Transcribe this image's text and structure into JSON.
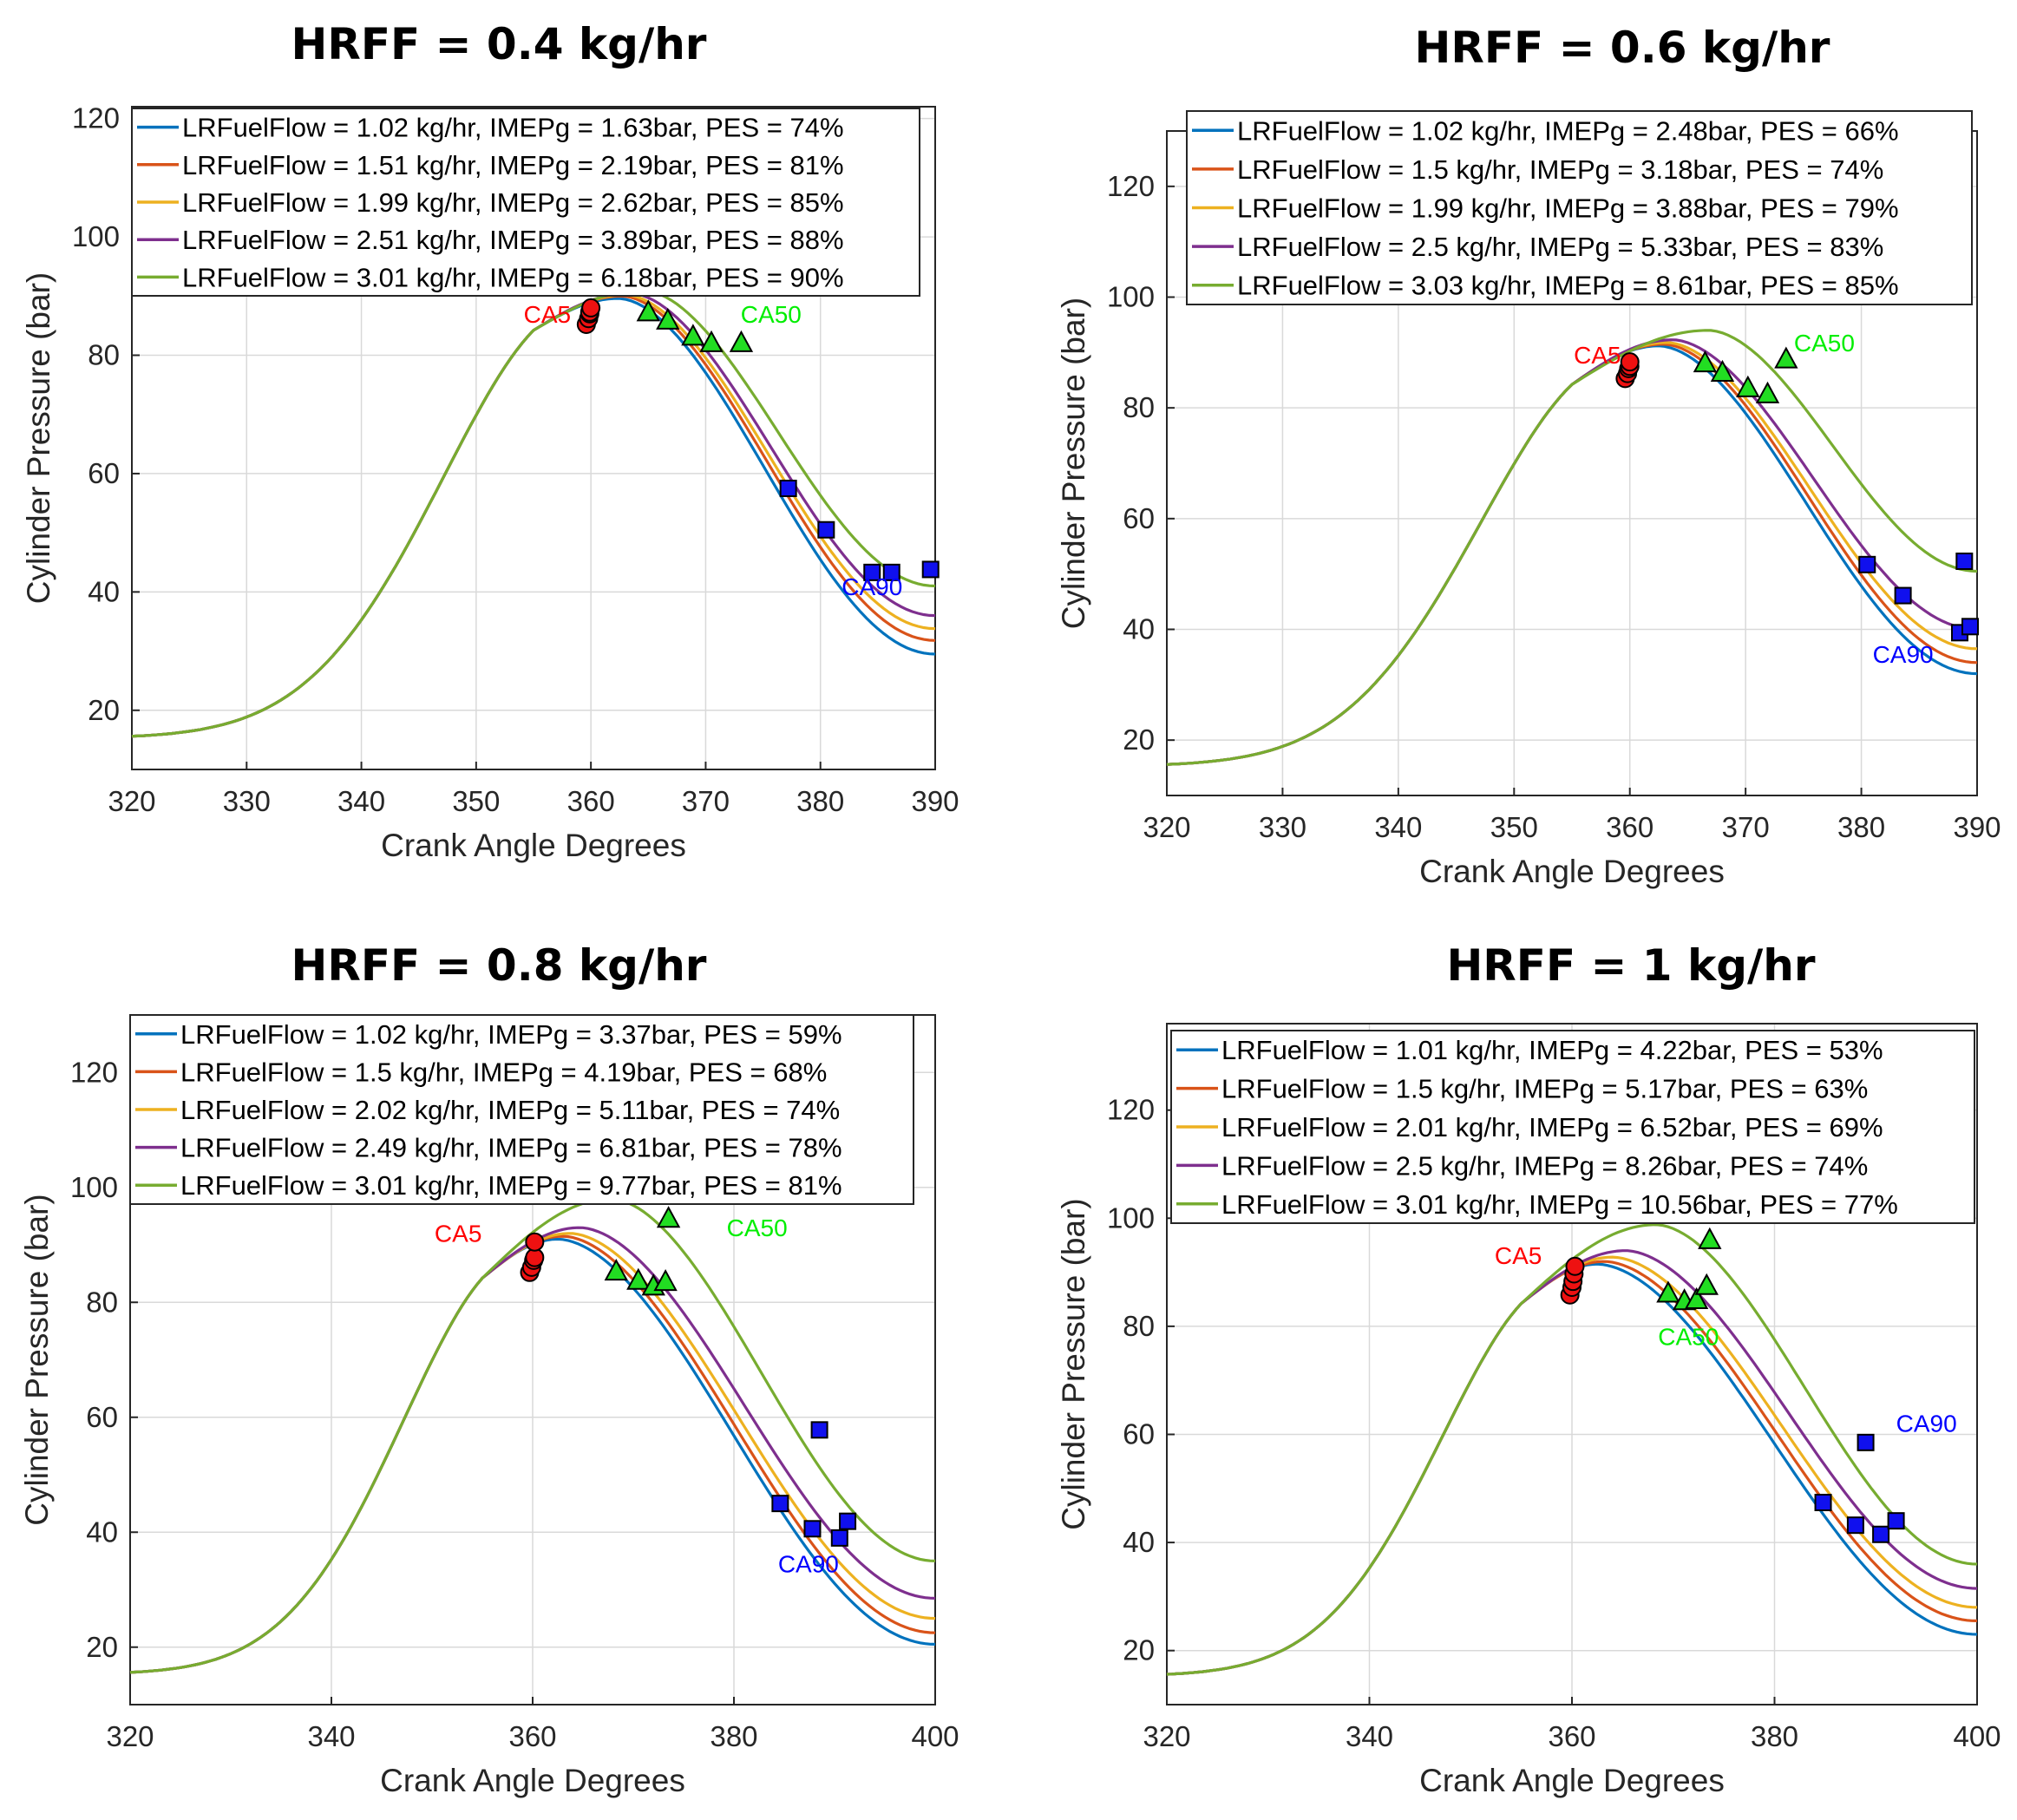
{
  "chart_data": [
    {
      "type": "line",
      "title": "HRFF = 0.4 kg/hr",
      "xlabel": "Crank Angle Degrees",
      "ylabel": "Cylinder Pressure (bar)",
      "xlim": [
        320,
        390
      ],
      "ylim": [
        10,
        122
      ],
      "xticks": [
        320,
        330,
        340,
        350,
        360,
        370,
        380,
        390
      ],
      "yticks": [
        20,
        40,
        60,
        80,
        100,
        120
      ],
      "grid": true,
      "legend_location": "top",
      "series": [
        {
          "name": "LRFuelFlow = 1.02 kg/hr, IMEPg = 1.63bar, PES = 74%",
          "color": "#0072BD",
          "peak_x": 362.4,
          "peak_y": 89.6,
          "end_y": 29.5,
          "ca5": [
            359.6,
            85.2
          ],
          "ca50": [
            365.0,
            87.2
          ],
          "ca90": [
            384.5,
            43.3
          ]
        },
        {
          "name": "LRFuelFlow = 1.51 kg/hr, IMEPg = 2.19bar, PES = 81%",
          "color": "#D95319",
          "peak_x": 362.7,
          "peak_y": 90.0,
          "end_y": 31.8,
          "ca5": [
            359.8,
            86.2
          ],
          "ca50": [
            366.7,
            85.8
          ],
          "ca90": [
            386.2,
            43.3
          ]
        },
        {
          "name": "LRFuelFlow = 1.99 kg/hr, IMEPg = 2.62bar, PES = 85%",
          "color": "#EDB120",
          "peak_x": 363.0,
          "peak_y": 90.2,
          "end_y": 33.8,
          "ca5": [
            359.9,
            87.0
          ],
          "ca50": [
            368.9,
            83.1
          ],
          "ca90": [
            380.5,
            50.5
          ]
        },
        {
          "name": "LRFuelFlow = 2.51 kg/hr, IMEPg = 3.89bar, PES = 88%",
          "color": "#7E2F8E",
          "peak_x": 363.4,
          "peak_y": 90.5,
          "end_y": 36.0,
          "ca5": [
            359.9,
            87.3
          ],
          "ca50": [
            370.5,
            82.0
          ],
          "ca90": [
            377.2,
            57.5
          ]
        },
        {
          "name": "LRFuelFlow = 3.01 kg/hr, IMEPg = 6.18bar, PES = 90%",
          "color": "#77AC30",
          "peak_x": 364.5,
          "peak_y": 91.0,
          "end_y": 41.0,
          "ca5": [
            360.0,
            88.0
          ],
          "ca50": [
            373.1,
            82.0
          ],
          "ca90": [
            389.6,
            43.8
          ]
        }
      ],
      "annotations": [
        {
          "text": "CA5",
          "x": 356.2,
          "y": 85.5,
          "color": "#FF0000"
        },
        {
          "text": "CA50",
          "x": 375.7,
          "y": 85.5,
          "color": "#00EE00"
        },
        {
          "text": "CA90",
          "x": 384.5,
          "y": 39.5,
          "color": "#0000FF"
        }
      ]
    },
    {
      "type": "line",
      "title": "HRFF = 0.6 kg/hr",
      "xlabel": "Crank Angle Degrees",
      "ylabel": "Cylinder Pressure (bar)",
      "xlim": [
        320,
        390
      ],
      "ylim": [
        10,
        130
      ],
      "xticks": [
        320,
        330,
        340,
        350,
        360,
        370,
        380,
        390
      ],
      "yticks": [
        20,
        40,
        60,
        80,
        100,
        120
      ],
      "grid": true,
      "legend_location": "top",
      "series": [
        {
          "name": "LRFuelFlow = 1.02 kg/hr, IMEPg = 2.48bar, PES = 66%",
          "color": "#0072BD",
          "peak_x": 362.5,
          "peak_y": 91.2,
          "end_y": 32.0,
          "ca5": [
            359.6,
            85.3
          ],
          "ca50": [
            366.5,
            88.0
          ],
          "ca90": [
            388.5,
            39.4
          ]
        },
        {
          "name": "LRFuelFlow = 1.5 kg/hr, IMEPg = 3.18bar, PES = 74%",
          "color": "#D95319",
          "peak_x": 362.9,
          "peak_y": 91.5,
          "end_y": 34.0,
          "ca5": [
            359.8,
            86.2
          ],
          "ca50": [
            368.0,
            86.3
          ],
          "ca90": [
            389.4,
            40.5
          ]
        },
        {
          "name": "LRFuelFlow = 1.99 kg/hr, IMEPg = 3.88bar, PES = 79%",
          "color": "#EDB120",
          "peak_x": 363.2,
          "peak_y": 91.8,
          "end_y": 36.5,
          "ca5": [
            359.9,
            87.1
          ],
          "ca50": [
            370.2,
            83.5
          ],
          "ca90": [
            383.6,
            46.1
          ]
        },
        {
          "name": "LRFuelFlow = 2.5 kg/hr, IMEPg = 5.33bar, PES = 83%",
          "color": "#7E2F8E",
          "peak_x": 363.7,
          "peak_y": 92.3,
          "end_y": 40.0,
          "ca5": [
            360.0,
            87.5
          ],
          "ca50": [
            371.9,
            82.4
          ],
          "ca90": [
            380.5,
            51.7
          ]
        },
        {
          "name": "LRFuelFlow = 3.03 kg/hr, IMEPg = 8.61bar, PES = 85%",
          "color": "#77AC30",
          "peak_x": 366.8,
          "peak_y": 94.0,
          "end_y": 50.5,
          "ca5": [
            360.0,
            88.3
          ],
          "ca50": [
            373.5,
            88.7
          ],
          "ca90": [
            388.9,
            52.3
          ]
        }
      ],
      "annotations": [
        {
          "text": "CA5",
          "x": 357.2,
          "y": 88.0,
          "color": "#FF0000"
        },
        {
          "text": "CA50",
          "x": 376.8,
          "y": 90.2,
          "color": "#00EE00"
        },
        {
          "text": "CA90",
          "x": 383.6,
          "y": 34.0,
          "color": "#0000FF"
        }
      ]
    },
    {
      "type": "line",
      "title": "HRFF = 0.8 kg/hr",
      "xlabel": "Crank Angle Degrees",
      "ylabel": "Cylinder Pressure (bar)",
      "xlim": [
        320,
        400
      ],
      "ylim": [
        10,
        130
      ],
      "xticks": [
        320,
        340,
        360,
        380,
        400
      ],
      "yticks": [
        20,
        40,
        60,
        80,
        100,
        120
      ],
      "grid": true,
      "legend_location": "top",
      "series": [
        {
          "name": "LRFuelFlow = 1.02 kg/hr, IMEPg = 3.37bar, PES = 59%",
          "color": "#0072BD",
          "peak_x": 362.5,
          "peak_y": 91.0,
          "end_y": 20.5,
          "ca5": [
            359.7,
            85.2
          ],
          "ca50": [
            368.3,
            85.3
          ],
          "ca90": [
            384.6,
            45.0
          ]
        },
        {
          "name": "LRFuelFlow = 1.5 kg/hr, IMEPg = 4.19bar, PES = 68%",
          "color": "#D95319",
          "peak_x": 363.0,
          "peak_y": 91.5,
          "end_y": 22.5,
          "ca5": [
            359.9,
            86.1
          ],
          "ca50": [
            370.5,
            83.7
          ],
          "ca90": [
            390.5,
            39.0
          ]
        },
        {
          "name": "LRFuelFlow = 2.02 kg/hr, IMEPg = 5.11bar, PES = 74%",
          "color": "#EDB120",
          "peak_x": 363.7,
          "peak_y": 92.0,
          "end_y": 25.0,
          "ca5": [
            360.1,
            87.3
          ],
          "ca50": [
            372.0,
            82.7
          ],
          "ca90": [
            387.8,
            40.6
          ]
        },
        {
          "name": "LRFuelFlow = 2.49 kg/hr, IMEPg = 6.81bar, PES = 78%",
          "color": "#7E2F8E",
          "peak_x": 364.7,
          "peak_y": 93.0,
          "end_y": 28.5,
          "ca5": [
            360.2,
            87.8
          ],
          "ca50": [
            373.2,
            83.5
          ],
          "ca90": [
            391.3,
            41.9
          ]
        },
        {
          "name": "LRFuelFlow = 3.01 kg/hr, IMEPg = 9.77bar, PES = 81%",
          "color": "#77AC30",
          "peak_x": 367.8,
          "peak_y": 98.0,
          "end_y": 35.0,
          "ca5": [
            360.2,
            90.5
          ],
          "ca50": [
            373.5,
            94.5
          ],
          "ca90": [
            388.5,
            57.8
          ]
        }
      ],
      "annotations": [
        {
          "text": "CA5",
          "x": 352.6,
          "y": 90.5,
          "color": "#FF0000"
        },
        {
          "text": "CA50",
          "x": 382.3,
          "y": 91.5,
          "color": "#00EE00"
        },
        {
          "text": "CA90",
          "x": 387.4,
          "y": 33.0,
          "color": "#0000FF"
        }
      ]
    },
    {
      "type": "line",
      "title": "HRFF = 1 kg/hr",
      "xlabel": "Crank Angle Degrees",
      "ylabel": "Cylinder Pressure (bar)",
      "xlim": [
        320,
        400
      ],
      "ylim": [
        10,
        136
      ],
      "xticks": [
        320,
        340,
        360,
        380,
        400
      ],
      "yticks": [
        20,
        40,
        60,
        80,
        100,
        120
      ],
      "grid": true,
      "legend_location": "top",
      "series": [
        {
          "name": "LRFuelFlow = 1.01 kg/hr, IMEPg = 4.22bar, PES = 53%",
          "color": "#0072BD",
          "peak_x": 362.5,
          "peak_y": 91.5,
          "end_y": 23.0,
          "ca5": [
            359.8,
            85.8
          ],
          "ca50": [
            369.5,
            86.0
          ],
          "ca90": [
            384.8,
            47.4
          ]
        },
        {
          "name": "LRFuelFlow = 1.5 kg/hr, IMEPg = 5.17bar, PES = 63%",
          "color": "#D95319",
          "peak_x": 363.2,
          "peak_y": 92.0,
          "end_y": 25.5,
          "ca5": [
            360.0,
            87.2
          ],
          "ca50": [
            371.1,
            84.6
          ],
          "ca90": [
            390.5,
            41.5
          ]
        },
        {
          "name": "LRFuelFlow = 2.01 kg/hr, IMEPg = 6.52bar, PES = 69%",
          "color": "#EDB120",
          "peak_x": 364.0,
          "peak_y": 92.8,
          "end_y": 28.0,
          "ca5": [
            360.1,
            88.3
          ],
          "ca50": [
            372.3,
            84.8
          ],
          "ca90": [
            388.0,
            43.2
          ]
        },
        {
          "name": "LRFuelFlow = 2.5 kg/hr, IMEPg = 8.26bar, PES = 74%",
          "color": "#7E2F8E",
          "peak_x": 365.3,
          "peak_y": 94.0,
          "end_y": 31.5,
          "ca5": [
            360.2,
            89.7
          ],
          "ca50": [
            373.3,
            87.4
          ],
          "ca90": [
            392.0,
            44.0
          ]
        },
        {
          "name": "LRFuelFlow = 3.01 kg/hr, IMEPg = 10.56bar, PES = 77%",
          "color": "#77AC30",
          "peak_x": 368.3,
          "peak_y": 98.8,
          "end_y": 36.0,
          "ca5": [
            360.3,
            91.1
          ],
          "ca50": [
            373.6,
            95.9
          ],
          "ca90": [
            389.0,
            58.5
          ]
        }
      ],
      "annotations": [
        {
          "text": "CA5",
          "x": 354.7,
          "y": 91.5,
          "color": "#FF0000"
        },
        {
          "text": "CA50",
          "x": 371.5,
          "y": 76.5,
          "color": "#00EE00"
        },
        {
          "text": "CA90",
          "x": 395.0,
          "y": 60.5,
          "color": "#0000FF"
        }
      ]
    }
  ]
}
